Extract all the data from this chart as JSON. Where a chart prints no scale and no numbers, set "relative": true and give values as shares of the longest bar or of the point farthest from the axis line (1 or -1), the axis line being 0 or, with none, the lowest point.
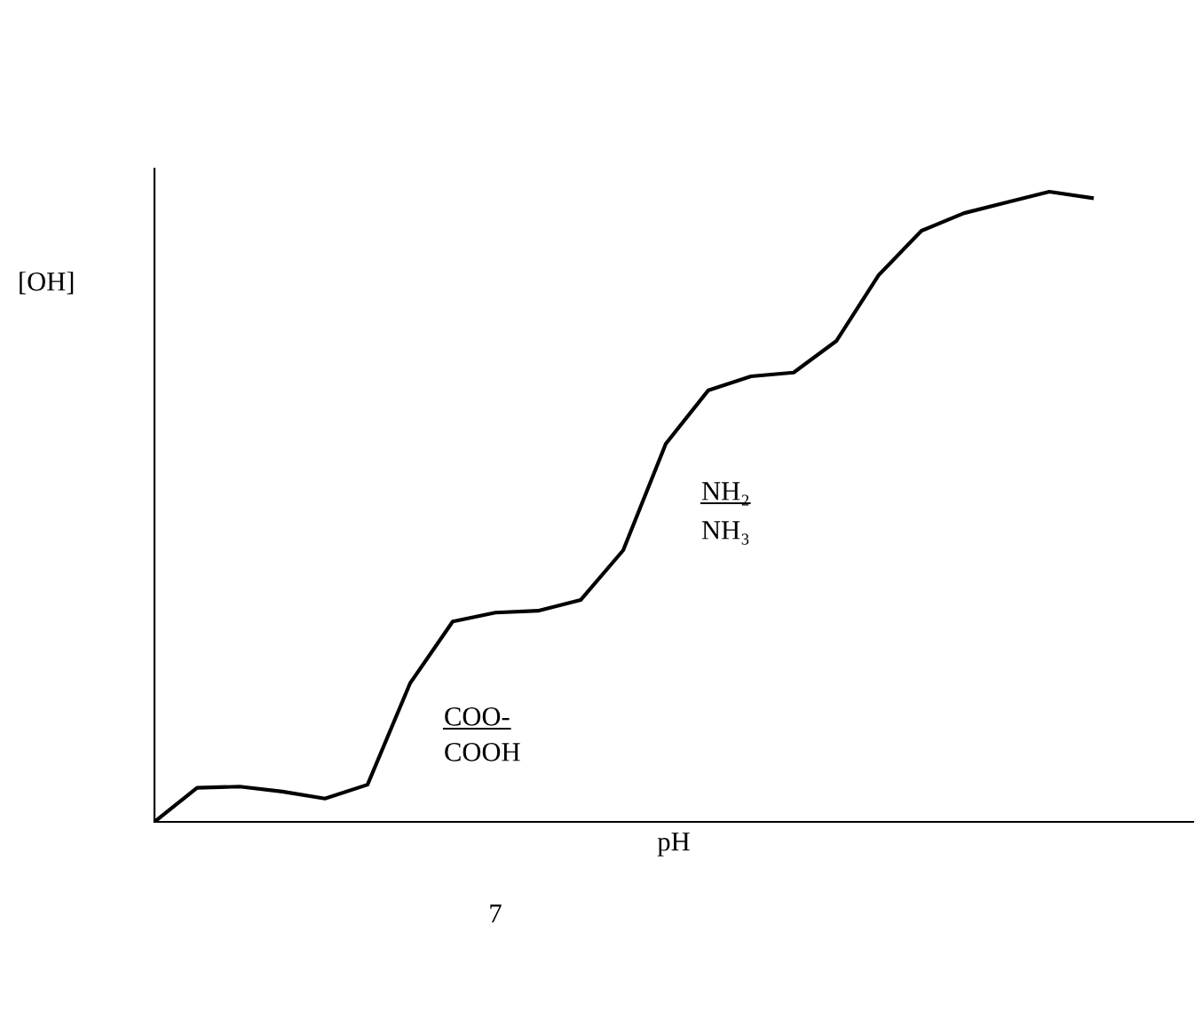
{
  "chart_data": {
    "type": "line",
    "relative": true,
    "xlabel": "pH",
    "ylabel": "[OH]",
    "color": "#000000",
    "categories": [
      null,
      null,
      null,
      null,
      null,
      null,
      null,
      null,
      null,
      null,
      null,
      null,
      null,
      null,
      null,
      null,
      null,
      null,
      null,
      null,
      null,
      null,
      null
    ],
    "values": [
      0,
      0.054,
      0.056,
      0.048,
      0.037,
      0.059,
      0.22,
      0.318,
      0.332,
      0.335,
      0.352,
      0.431,
      0.6,
      0.685,
      0.707,
      0.713,
      0.763,
      0.868,
      0.938,
      0.966,
      0.983,
      1.0,
      0.99
    ],
    "annotations": [
      "COO-",
      "COOH",
      "NH₂",
      "NH₃",
      "7"
    ]
  }
}
